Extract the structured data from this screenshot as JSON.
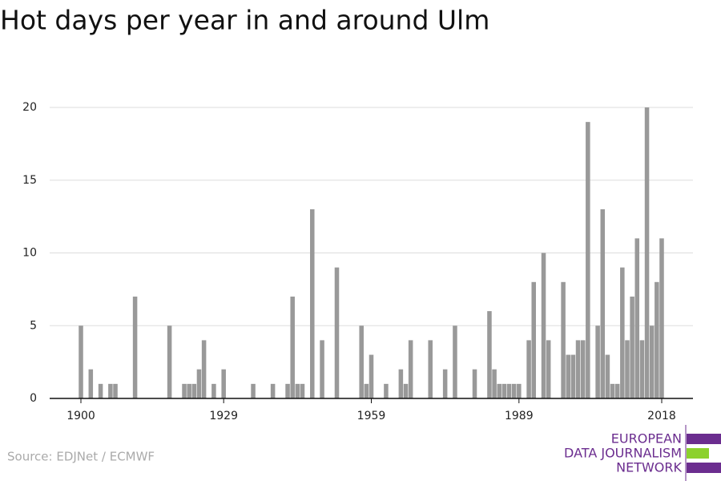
{
  "chart_data": {
    "type": "bar",
    "title": "Hot days per year in and around Ulm",
    "source": "Source: EDJNet / ECMWF",
    "logo": [
      "EUROPEAN",
      "DATA JOURNALISM",
      "NETWORK"
    ],
    "x": [
      1900,
      1901,
      1902,
      1903,
      1904,
      1905,
      1906,
      1907,
      1908,
      1909,
      1910,
      1911,
      1912,
      1913,
      1914,
      1915,
      1916,
      1917,
      1918,
      1919,
      1920,
      1921,
      1922,
      1923,
      1924,
      1925,
      1926,
      1927,
      1928,
      1929,
      1930,
      1931,
      1932,
      1933,
      1934,
      1935,
      1936,
      1937,
      1938,
      1939,
      1940,
      1941,
      1942,
      1943,
      1944,
      1945,
      1946,
      1947,
      1948,
      1949,
      1950,
      1951,
      1952,
      1953,
      1954,
      1955,
      1956,
      1957,
      1958,
      1959,
      1960,
      1961,
      1962,
      1963,
      1964,
      1965,
      1966,
      1967,
      1968,
      1969,
      1970,
      1971,
      1972,
      1973,
      1974,
      1975,
      1976,
      1977,
      1978,
      1979,
      1980,
      1981,
      1982,
      1983,
      1984,
      1985,
      1986,
      1987,
      1988,
      1989,
      1990,
      1991,
      1992,
      1993,
      1994,
      1995,
      1996,
      1997,
      1998,
      1999,
      2000,
      2001,
      2002,
      2003,
      2004,
      2005,
      2006,
      2007,
      2008,
      2009,
      2010,
      2011,
      2012,
      2013,
      2014,
      2015,
      2016,
      2017,
      2018
    ],
    "values": [
      5,
      0,
      2,
      0,
      1,
      0,
      1,
      1,
      0,
      0,
      0,
      7,
      0,
      0,
      0,
      0,
      0,
      0,
      5,
      0,
      0,
      1,
      1,
      1,
      2,
      4,
      0,
      1,
      0,
      2,
      0,
      0,
      0,
      0,
      0,
      1,
      0,
      0,
      0,
      1,
      0,
      0,
      1,
      7,
      1,
      1,
      0,
      13,
      0,
      4,
      0,
      0,
      9,
      0,
      0,
      0,
      0,
      5,
      1,
      3,
      0,
      0,
      1,
      0,
      0,
      2,
      1,
      4,
      0,
      0,
      0,
      4,
      0,
      0,
      2,
      0,
      5,
      0,
      0,
      0,
      2,
      0,
      0,
      6,
      2,
      1,
      1,
      1,
      1,
      1,
      0,
      4,
      8,
      0,
      10,
      4,
      0,
      0,
      8,
      3,
      3,
      4,
      4,
      19,
      0,
      5,
      13,
      3,
      1,
      1,
      9,
      4,
      7,
      11,
      4,
      20,
      5,
      8,
      11
    ],
    "color": "#999999",
    "xlim": [
      1893.65,
      2024.35
    ],
    "xticks": [
      1900,
      1929,
      1959,
      1989,
      2018
    ],
    "ylim": [
      0,
      20
    ],
    "yticks": [
      0,
      5,
      10,
      15,
      20
    ],
    "grid": true
  }
}
